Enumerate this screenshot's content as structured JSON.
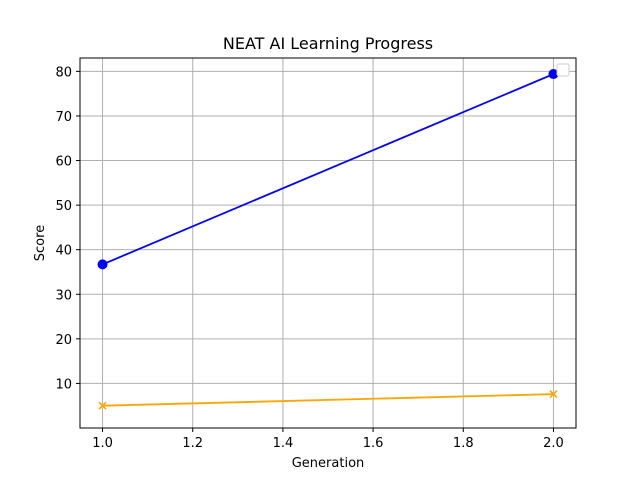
{
  "chart_data": {
    "type": "line",
    "title": "NEAT AI Learning Progress",
    "xlabel": "Generation",
    "ylabel": "Score",
    "x": [
      1.0,
      2.0
    ],
    "xlim": [
      0.95,
      2.05
    ],
    "ylim": [
      0,
      83
    ],
    "xticks": [
      1.0,
      1.2,
      1.4,
      1.6,
      1.8,
      2.0
    ],
    "xtick_labels": [
      "1.0",
      "1.2",
      "1.4",
      "1.6",
      "1.8",
      "2.0"
    ],
    "yticks": [
      10,
      20,
      30,
      40,
      50,
      60,
      70,
      80
    ],
    "ytick_labels": [
      "10",
      "20",
      "30",
      "40",
      "50",
      "60",
      "70",
      "80"
    ],
    "grid": true,
    "legend": "upper right, empty",
    "series": [
      {
        "values": [
          36.7,
          79.4
        ],
        "color": "#0000ff",
        "marker": "circle"
      },
      {
        "values": [
          5.0,
          7.6
        ],
        "color": "#ffa500",
        "marker": "x"
      }
    ]
  }
}
